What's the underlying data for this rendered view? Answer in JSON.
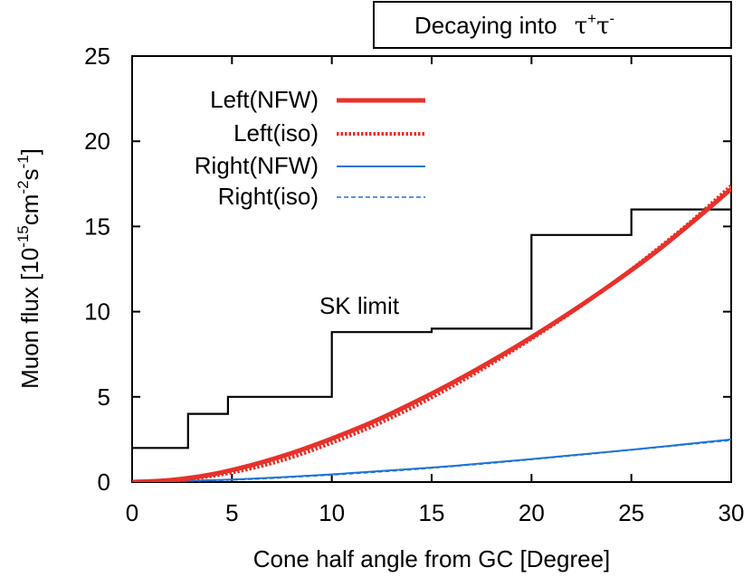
{
  "chart_data": {
    "type": "line",
    "title": "Decaying into τ⁺τ⁻",
    "title_parts": {
      "prefix": "Decaying into",
      "tau": "τ",
      "plus": "+",
      "minus": "-"
    },
    "xlabel": "Cone half angle from GC [Degree]",
    "ylabel_parts": {
      "main": "Muon flux [10",
      "exp1": "-15",
      "mid": "cm",
      "exp2": "-2",
      "mid2": "s",
      "exp3": "-1",
      "end": "]"
    },
    "xlim": [
      0,
      30
    ],
    "ylim": [
      0,
      25
    ],
    "xticks": [
      "0",
      "5",
      "10",
      "15",
      "20",
      "25",
      "30"
    ],
    "yticks": [
      "0",
      "5",
      "10",
      "15",
      "20",
      "25"
    ],
    "grid": false,
    "legend_position": "top-left",
    "series": [
      {
        "name": "Left(NFW)",
        "color": "#e8312a",
        "style": "solid-thick",
        "x": [
          0,
          2,
          4,
          6,
          8,
          10,
          12,
          14,
          16,
          18,
          20,
          22,
          24,
          26,
          28,
          30
        ],
        "y": [
          0,
          0.12,
          0.45,
          1.0,
          1.7,
          2.55,
          3.5,
          4.6,
          5.8,
          7.1,
          8.5,
          10.0,
          11.6,
          13.3,
          15.2,
          17.2
        ]
      },
      {
        "name": "Left(iso)",
        "color": "#e8312a",
        "style": "dotted",
        "x": [
          0,
          2,
          4,
          6,
          8,
          10,
          12,
          14,
          16,
          18,
          20,
          22,
          24,
          26,
          28,
          30
        ],
        "y": [
          0,
          0.08,
          0.35,
          0.8,
          1.45,
          2.3,
          3.25,
          4.35,
          5.6,
          6.95,
          8.4,
          9.95,
          11.6,
          13.4,
          15.3,
          17.4
        ]
      },
      {
        "name": "Right(NFW)",
        "color": "#1f74d6",
        "style": "solid",
        "x": [
          0,
          5,
          10,
          15,
          20,
          25,
          30
        ],
        "y": [
          0,
          0.15,
          0.45,
          0.85,
          1.35,
          1.9,
          2.5
        ]
      },
      {
        "name": "Right(iso)",
        "color": "#1f74d6",
        "style": "dashed",
        "x": [
          0,
          5,
          10,
          15,
          20,
          25,
          30
        ],
        "y": [
          0,
          0.12,
          0.42,
          0.82,
          1.32,
          1.88,
          2.45
        ]
      },
      {
        "name": "SK limit",
        "color": "#000000",
        "style": "step",
        "x": [
          0,
          2.8,
          2.8,
          4.8,
          4.8,
          10,
          10,
          15,
          15,
          20,
          20,
          25,
          25,
          30
        ],
        "y": [
          2,
          2,
          4,
          4,
          5,
          5,
          8.8,
          8.8,
          9,
          9,
          14.5,
          14.5,
          16,
          16
        ]
      }
    ],
    "annotations": [
      {
        "text": "SK limit",
        "x": 13.4,
        "y": 10.3
      }
    ]
  }
}
